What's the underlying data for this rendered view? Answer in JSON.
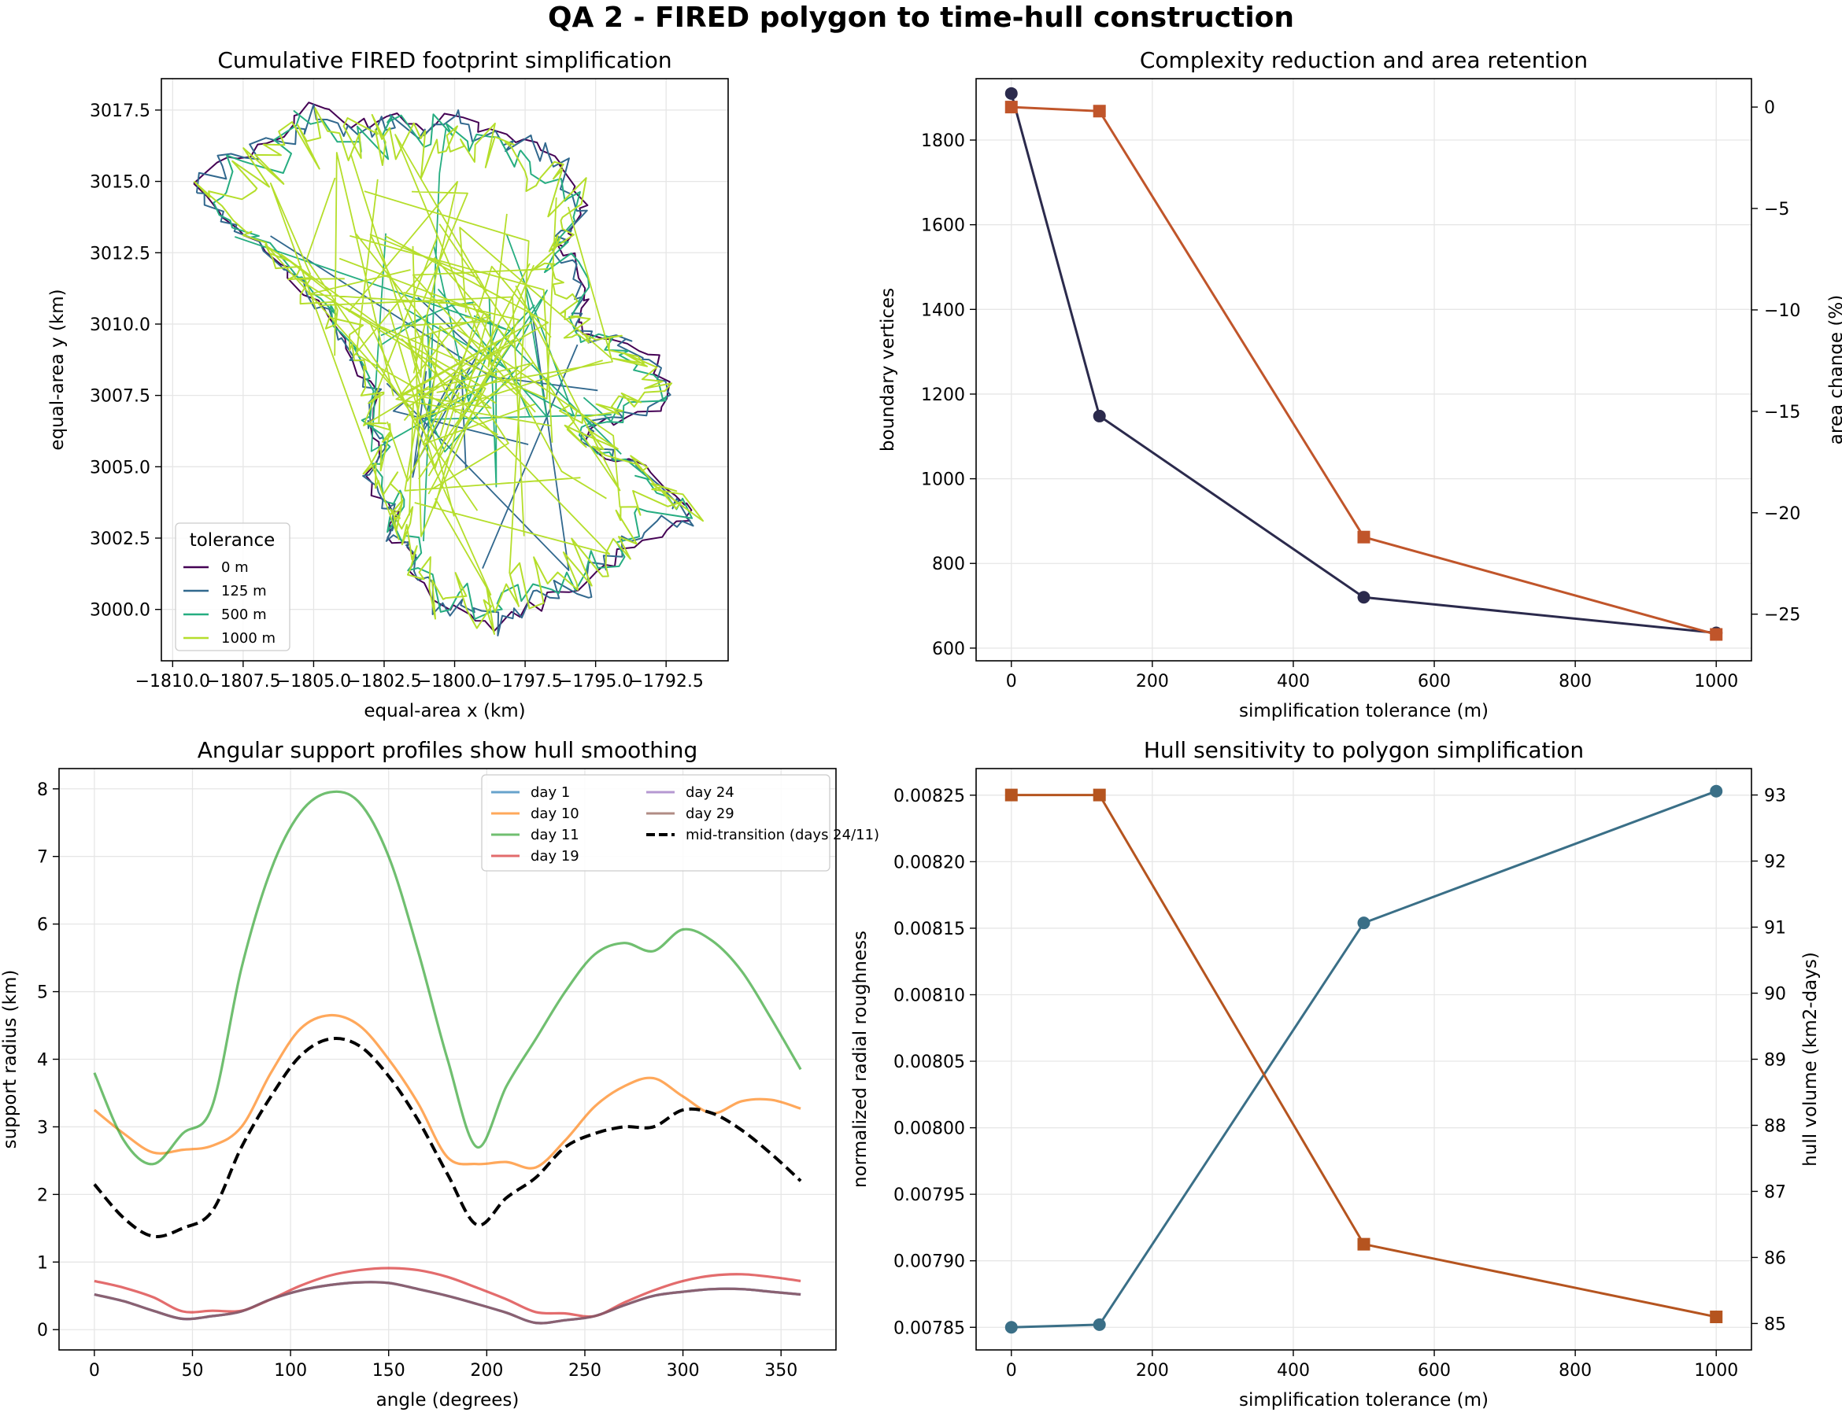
{
  "figure": {
    "suptitle": "QA 2 - FIRED polygon to time-hull construction"
  },
  "colors": {
    "tol_0": "#440154",
    "tol_125": "#31688e",
    "tol_500": "#26ad81",
    "tol_1000": "#b5de2b",
    "navy": "#2b2a4c",
    "orange_rust": "#c0552a",
    "teal": "#3a6f87",
    "rust": "#b5541f",
    "day1": "#1f77b4",
    "day10": "#ff7f0e",
    "day11": "#2ca02c",
    "day19": "#d62728",
    "day24": "#9467bd",
    "day29": "#8c564b"
  },
  "chart_data": [
    {
      "id": "footprint",
      "type": "line",
      "title": "Cumulative FIRED footprint simplification",
      "xlabel": "equal-area x (km)",
      "ylabel": "equal-area y (km)",
      "xlim": [
        -1810.4,
        -1790.3
      ],
      "ylim": [
        2998.2,
        3018.6
      ],
      "xticks": [
        -1810.0,
        -1807.5,
        -1805.0,
        -1802.5,
        -1800.0,
        -1797.5,
        -1795.0,
        -1792.5
      ],
      "xtick_labels": [
        "−1810.0",
        "−1807.5",
        "−1805.0",
        "−1802.5",
        "−1800.0",
        "−1797.5",
        "−1795.0",
        "−1792.5"
      ],
      "yticks": [
        3000.0,
        3002.5,
        3005.0,
        3007.5,
        3010.0,
        3012.5,
        3015.0,
        3017.5
      ],
      "ytick_labels": [
        "3000.0",
        "3002.5",
        "3005.0",
        "3007.5",
        "3010.0",
        "3012.5",
        "3015.0",
        "3017.5"
      ],
      "legend": {
        "title": "tolerance",
        "position": "lower-left"
      },
      "outline": [
        [
          -1809.4,
          3015.0
        ],
        [
          -1808.3,
          3016.0
        ],
        [
          -1807.2,
          3016.4
        ],
        [
          -1806.0,
          3017.1
        ],
        [
          -1805.2,
          3017.8
        ],
        [
          -1804.0,
          3017.4
        ],
        [
          -1803.0,
          3017.1
        ],
        [
          -1802.2,
          3017.5
        ],
        [
          -1801.0,
          3017.0
        ],
        [
          -1800.0,
          3017.6
        ],
        [
          -1799.0,
          3017.0
        ],
        [
          -1797.8,
          3016.8
        ],
        [
          -1796.8,
          3016.3
        ],
        [
          -1796.0,
          3015.6
        ],
        [
          -1795.2,
          3014.4
        ],
        [
          -1795.8,
          3013.5
        ],
        [
          -1796.3,
          3012.8
        ],
        [
          -1795.5,
          3012.2
        ],
        [
          -1795.2,
          3011.0
        ],
        [
          -1795.6,
          3010.2
        ],
        [
          -1795.0,
          3009.6
        ],
        [
          -1793.8,
          3009.3
        ],
        [
          -1792.8,
          3008.8
        ],
        [
          -1792.2,
          3007.8
        ],
        [
          -1792.6,
          3007.0
        ],
        [
          -1793.8,
          3006.6
        ],
        [
          -1795.0,
          3006.5
        ],
        [
          -1795.2,
          3005.8
        ],
        [
          -1794.0,
          3005.2
        ],
        [
          -1792.8,
          3004.6
        ],
        [
          -1791.6,
          3003.4
        ],
        [
          -1791.3,
          3003.1
        ],
        [
          -1792.3,
          3002.6
        ],
        [
          -1793.6,
          3002.0
        ],
        [
          -1794.4,
          3001.2
        ],
        [
          -1795.2,
          3000.4
        ],
        [
          -1796.6,
          3000.3
        ],
        [
          -1797.6,
          2999.6
        ],
        [
          -1798.4,
          2999.1
        ],
        [
          -1799.5,
          2999.6
        ],
        [
          -1800.6,
          2999.8
        ],
        [
          -1801.5,
          3000.8
        ],
        [
          -1801.6,
          3002.0
        ],
        [
          -1802.3,
          3002.4
        ],
        [
          -1802.1,
          3003.2
        ],
        [
          -1802.8,
          3003.6
        ],
        [
          -1803.2,
          3004.6
        ],
        [
          -1802.6,
          3005.4
        ],
        [
          -1803.2,
          3006.4
        ],
        [
          -1802.8,
          3007.5
        ],
        [
          -1803.8,
          3008.6
        ],
        [
          -1804.3,
          3009.8
        ],
        [
          -1805.0,
          3010.8
        ],
        [
          -1806.2,
          3012.0
        ],
        [
          -1807.2,
          3013.0
        ],
        [
          -1808.4,
          3013.8
        ]
      ],
      "series": [
        {
          "name": "0 m",
          "color": "#440154"
        },
        {
          "name": "125 m",
          "color": "#31688e"
        },
        {
          "name": "500 m",
          "color": "#26ad81"
        },
        {
          "name": "1000 m",
          "color": "#b5de2b"
        }
      ]
    },
    {
      "id": "complexity",
      "type": "line",
      "title": "Complexity reduction and area retention",
      "xlabel": "simplification tolerance (m)",
      "ylabel": "boundary vertices",
      "ylabel_right": "area change (%)",
      "x": [
        0,
        125,
        500,
        1000
      ],
      "xlim": [
        -50,
        1050
      ],
      "ylim": [
        570,
        1945
      ],
      "ylim_right": [
        -27.3,
        1.4
      ],
      "xticks": [
        0,
        200,
        400,
        600,
        800,
        1000
      ],
      "xtick_labels": [
        "0",
        "200",
        "400",
        "600",
        "800",
        "1000"
      ],
      "yticks": [
        600,
        800,
        1000,
        1200,
        1400,
        1600,
        1800
      ],
      "ytick_labels": [
        "600",
        "800",
        "1000",
        "1200",
        "1400",
        "1600",
        "1800"
      ],
      "yticks_right": [
        0,
        -5,
        -10,
        -15,
        -20,
        -25
      ],
      "ytick_labels_right": [
        "0",
        "−5",
        "−10",
        "−15",
        "−20",
        "−25"
      ],
      "series": [
        {
          "axis": "left",
          "marker": "circle",
          "values": [
            1910,
            1148,
            720,
            636
          ]
        },
        {
          "axis": "right",
          "marker": "square",
          "values": [
            0.0,
            -0.2,
            -21.2,
            -26.0
          ]
        }
      ]
    },
    {
      "id": "angular",
      "type": "line",
      "title": "Angular support profiles show hull smoothing",
      "xlabel": "angle (degrees)",
      "ylabel": "support radius (km)",
      "x": [
        0,
        15,
        30,
        45,
        60,
        75,
        90,
        105,
        120,
        135,
        150,
        165,
        180,
        195,
        210,
        225,
        240,
        255,
        270,
        285,
        300,
        315,
        330,
        345,
        360
      ],
      "xlim": [
        -18,
        378
      ],
      "ylim": [
        -0.3,
        8.3
      ],
      "xticks": [
        0,
        50,
        100,
        150,
        200,
        250,
        300,
        350
      ],
      "xtick_labels": [
        "0",
        "50",
        "100",
        "150",
        "200",
        "250",
        "300",
        "350"
      ],
      "yticks": [
        0,
        1,
        2,
        3,
        4,
        5,
        6,
        7,
        8
      ],
      "ytick_labels": [
        "0",
        "1",
        "2",
        "3",
        "4",
        "5",
        "6",
        "7",
        "8"
      ],
      "legend": {
        "position": "top-right",
        "columns": 2
      },
      "series": [
        {
          "name": "day 1",
          "color": "#1f77b4",
          "dashed": false,
          "values": [
            0.52,
            0.42,
            0.28,
            0.16,
            0.2,
            0.27,
            0.45,
            0.58,
            0.66,
            0.7,
            0.69,
            0.6,
            0.5,
            0.38,
            0.25,
            0.1,
            0.14,
            0.2,
            0.36,
            0.5,
            0.56,
            0.6,
            0.6,
            0.56,
            0.52
          ]
        },
        {
          "name": "day 10",
          "color": "#ff7f0e",
          "dashed": false,
          "values": [
            3.25,
            2.9,
            2.62,
            2.66,
            2.72,
            3.0,
            3.8,
            4.45,
            4.65,
            4.5,
            4.0,
            3.35,
            2.55,
            2.45,
            2.48,
            2.4,
            2.8,
            3.3,
            3.6,
            3.72,
            3.45,
            3.2,
            3.38,
            3.4,
            3.27
          ]
        },
        {
          "name": "day 11",
          "color": "#2ca02c",
          "dashed": false,
          "values": [
            3.8,
            2.8,
            2.45,
            2.9,
            3.3,
            5.35,
            6.8,
            7.65,
            7.95,
            7.8,
            7.0,
            5.6,
            4.0,
            2.7,
            3.6,
            4.3,
            5.0,
            5.55,
            5.72,
            5.6,
            5.92,
            5.75,
            5.3,
            4.6,
            3.85
          ]
        },
        {
          "name": "day 19",
          "color": "#d62728",
          "dashed": false,
          "values": [
            0.72,
            0.62,
            0.48,
            0.27,
            0.28,
            0.28,
            0.45,
            0.65,
            0.8,
            0.88,
            0.91,
            0.88,
            0.78,
            0.62,
            0.45,
            0.26,
            0.24,
            0.2,
            0.4,
            0.58,
            0.72,
            0.8,
            0.82,
            0.78,
            0.72
          ]
        },
        {
          "name": "day 24",
          "color": "#9467bd",
          "dashed": false,
          "values": [
            0.52,
            0.42,
            0.28,
            0.16,
            0.2,
            0.27,
            0.45,
            0.58,
            0.66,
            0.7,
            0.69,
            0.6,
            0.5,
            0.38,
            0.25,
            0.1,
            0.14,
            0.2,
            0.36,
            0.5,
            0.56,
            0.6,
            0.6,
            0.56,
            0.52
          ]
        },
        {
          "name": "day 29",
          "color": "#8c564b",
          "dashed": false,
          "values": [
            0.52,
            0.42,
            0.28,
            0.16,
            0.2,
            0.27,
            0.45,
            0.58,
            0.66,
            0.7,
            0.69,
            0.6,
            0.5,
            0.38,
            0.25,
            0.1,
            0.14,
            0.2,
            0.36,
            0.5,
            0.56,
            0.6,
            0.6,
            0.56,
            0.52
          ]
        },
        {
          "name": "mid-transition (days 24/11)",
          "color": "#000000",
          "dashed": true,
          "values": [
            2.15,
            1.65,
            1.38,
            1.5,
            1.75,
            2.7,
            3.45,
            4.05,
            4.3,
            4.2,
            3.75,
            3.1,
            2.3,
            1.55,
            1.95,
            2.25,
            2.7,
            2.9,
            3.0,
            3.0,
            3.25,
            3.2,
            2.95,
            2.6,
            2.2
          ]
        }
      ]
    },
    {
      "id": "hull",
      "type": "line",
      "title": "Hull sensitivity to polygon simplification",
      "xlabel": "simplification tolerance (m)",
      "ylabel": "normalized radial roughness",
      "ylabel_right": "hull volume (km2-days)",
      "x": [
        0,
        125,
        500,
        1000
      ],
      "xlim": [
        -50,
        1050
      ],
      "ylim": [
        0.007833,
        0.00827
      ],
      "ylim_right": [
        84.6,
        93.4
      ],
      "xticks": [
        0,
        200,
        400,
        600,
        800,
        1000
      ],
      "xtick_labels": [
        "0",
        "200",
        "400",
        "600",
        "800",
        "1000"
      ],
      "yticks": [
        0.00785,
        0.0079,
        0.00795,
        0.008,
        0.00805,
        0.0081,
        0.00815,
        0.0082,
        0.00825
      ],
      "ytick_labels": [
        "0.00785",
        "0.00790",
        "0.00795",
        "0.00800",
        "0.00805",
        "0.00810",
        "0.00815",
        "0.00820",
        "0.00825"
      ],
      "yticks_right": [
        85,
        86,
        87,
        88,
        89,
        90,
        91,
        92,
        93
      ],
      "ytick_labels_right": [
        "85",
        "86",
        "87",
        "88",
        "89",
        "90",
        "91",
        "92",
        "93"
      ],
      "series": [
        {
          "axis": "left",
          "marker": "circle",
          "values": [
            0.00785,
            0.007852,
            0.008154,
            0.008253
          ]
        },
        {
          "axis": "right",
          "marker": "square",
          "values": [
            93.0,
            93.0,
            86.2,
            85.1
          ]
        }
      ]
    }
  ]
}
